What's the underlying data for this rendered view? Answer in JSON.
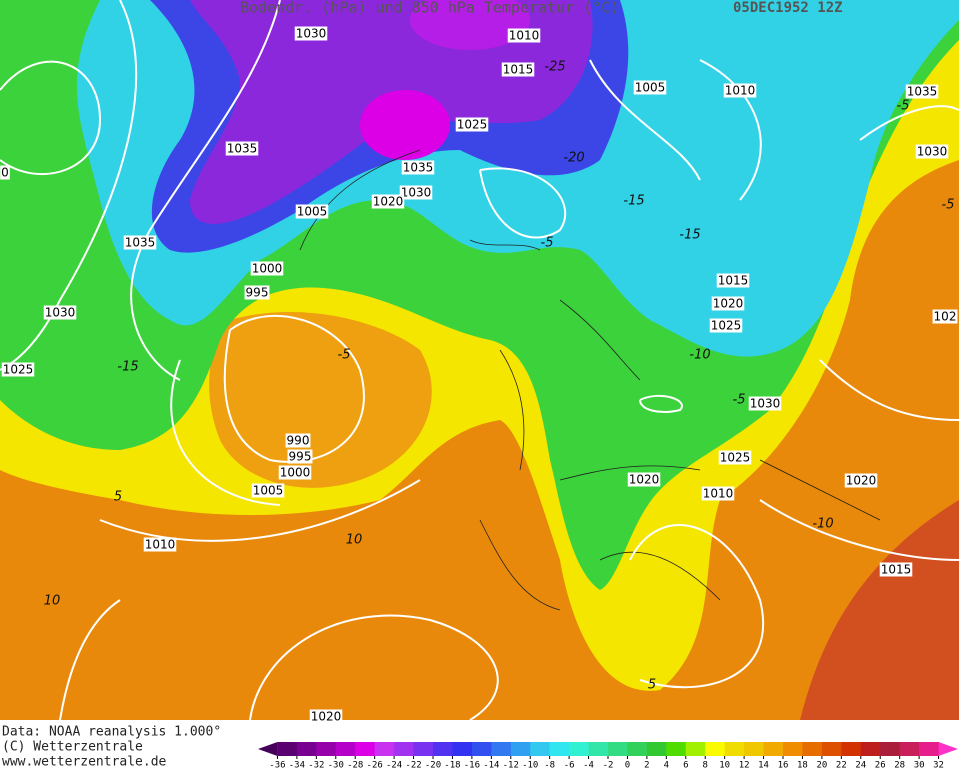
{
  "header": {
    "title": "Bodendr. (hPa) und 850 hPa Temperatur (°C)",
    "valid_time": "05DEC1952 12Z"
  },
  "isobar_labels": [
    "1030",
    "1010",
    "1015",
    "1005",
    "1010",
    "1035",
    "1025",
    "1035",
    "1030",
    "1035",
    "1030",
    "1020",
    "1005",
    "1035",
    "1000",
    "995",
    "1015",
    "1020",
    "1025",
    "1030",
    "1025",
    "1030",
    "990",
    "995",
    "1000",
    "1005",
    "1025",
    "1020",
    "1010",
    "1020",
    "1010",
    "1015",
    "1020",
    "102",
    "0"
  ],
  "temperature_labels": [
    "-25",
    "-20",
    "-15",
    "-15",
    "-5",
    "-5",
    "-5",
    "-10",
    "-15",
    "-5",
    "-5",
    "5",
    "10",
    "-10",
    "10",
    "5"
  ],
  "footer": {
    "source": "Data: NOAA reanalysis 1.000°",
    "copyright": "(C) Wetterzentrale",
    "url": "www.wetterzentrale.de"
  },
  "legend": {
    "ticks": [
      -36,
      -34,
      -32,
      -30,
      -28,
      -26,
      -24,
      -22,
      -20,
      -18,
      -16,
      -14,
      -12,
      -10,
      -8,
      -6,
      -4,
      -2,
      0,
      2,
      4,
      6,
      8,
      10,
      12,
      14,
      16,
      18,
      20,
      22,
      24,
      26,
      28,
      30,
      32
    ],
    "colors": [
      "#46005a",
      "#5a0070",
      "#780090",
      "#9600aa",
      "#b400c8",
      "#dc00e6",
      "#c832f0",
      "#a032f0",
      "#7832f0",
      "#5032f0",
      "#3232f0",
      "#3250f0",
      "#3278f0",
      "#32a0f0",
      "#32c8f0",
      "#32e6f0",
      "#32f0d2",
      "#32e6aa",
      "#32dc82",
      "#32d25a",
      "#32c832",
      "#50dc00",
      "#a0f000",
      "#fafa00",
      "#f0dc00",
      "#f0c800",
      "#f0aa00",
      "#f08c00",
      "#e66e00",
      "#dc5000",
      "#d23200",
      "#be1e1e",
      "#aa1e3c",
      "#c81e5a",
      "#e61e8c",
      "#ff32c8"
    ]
  }
}
